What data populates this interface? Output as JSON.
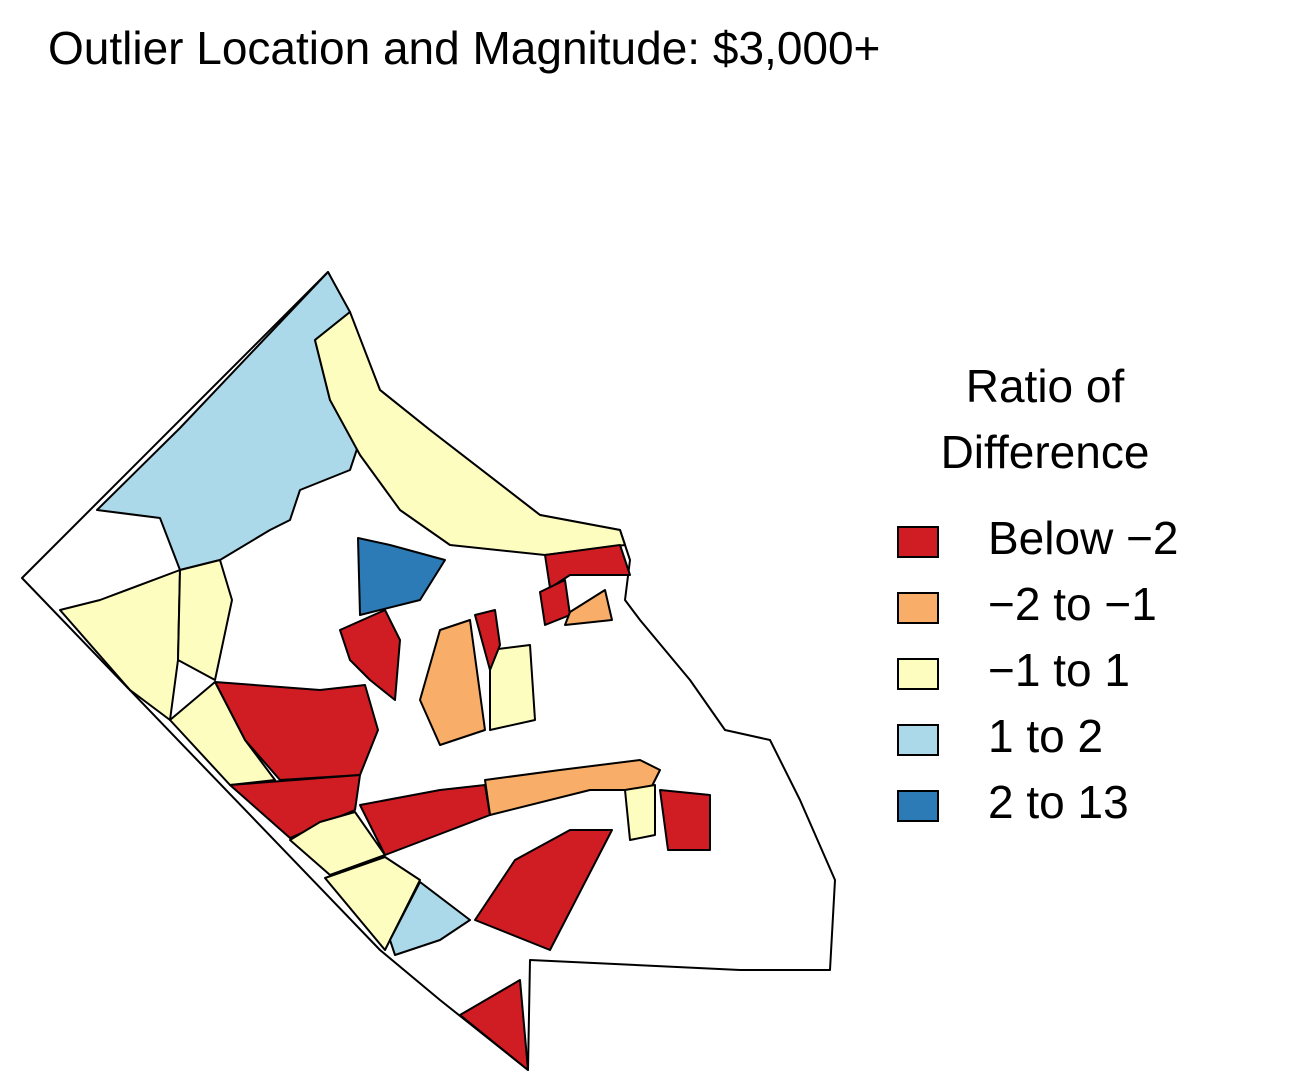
{
  "title": "Outlier Location and Magnitude: $3,000+",
  "legend": {
    "title_lines": [
      "Ratio of",
      "Difference"
    ],
    "items": [
      {
        "label": "Below −2",
        "color": "#d01c23"
      },
      {
        "label": "−2 to −1",
        "color": "#f8ad68"
      },
      {
        "label": "−1 to 1",
        "color": "#fefdc0"
      },
      {
        "label": "1 to 2",
        "color": "#abd9e9"
      },
      {
        "label": "2 to 13",
        "color": "#2c7bb6"
      }
    ]
  }
}
